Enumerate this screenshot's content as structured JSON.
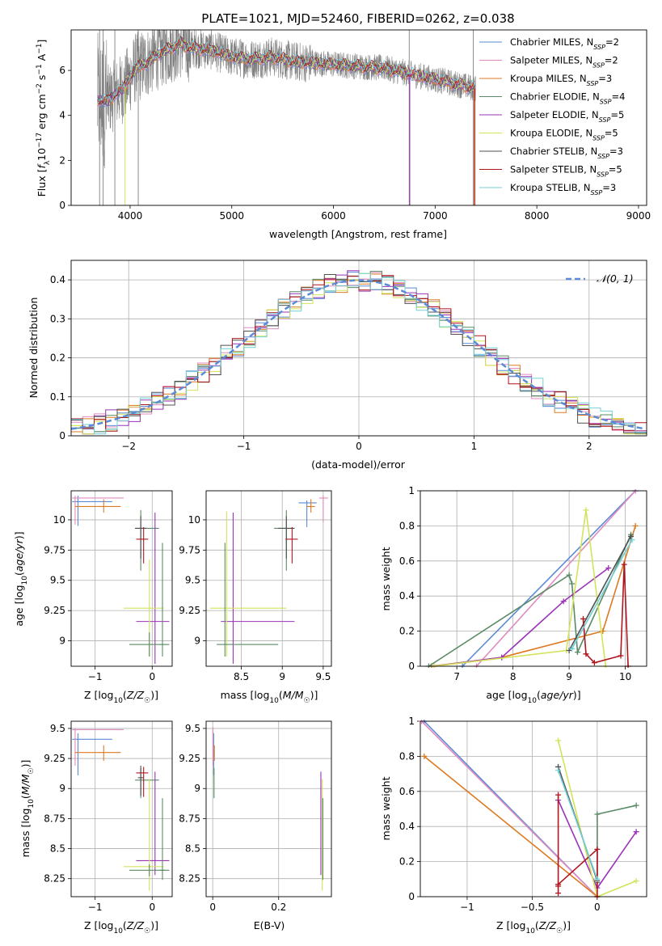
{
  "figure": {
    "title": "PLATE=1021, MJD=52460, FIBERID=0262, z=0.038"
  },
  "colors": {
    "models": [
      "#5b8ad6",
      "#e08bbf",
      "#dd7a20",
      "#5a8a66",
      "#9a33b8",
      "#d3e35a",
      "#505050",
      "#b0141d",
      "#72d0d6"
    ],
    "observed": "#808080",
    "normal_curve": "#5b8ad6"
  },
  "chart_data": [
    {
      "id": "spectrum",
      "type": "line",
      "xlabel": "wavelength [Angstrom, rest frame]",
      "ylabel": "Flux [f_λ 10^-17 erg cm^-2 s^-1 A^-1]",
      "xlim": [
        3420,
        9080
      ],
      "ylim": [
        0,
        7.8
      ],
      "xticks": [
        4000,
        5000,
        6000,
        7000,
        8000,
        9000
      ],
      "yticks": [
        0,
        2,
        4,
        6
      ],
      "grid": false,
      "legend_position": "top-right",
      "series": [
        {
          "name": "Chabrier MILES, N_SSP=2",
          "legend_main": "Chabrier MILES, N",
          "legend_sub": "SSP",
          "legend_tail": "=2"
        },
        {
          "name": "Salpeter MILES, N_SSP=2",
          "legend_main": "Salpeter MILES, N",
          "legend_sub": "SSP",
          "legend_tail": "=2"
        },
        {
          "name": "Kroupa MILES, N_SSP=3",
          "legend_main": "Kroupa MILES, N",
          "legend_sub": "SSP",
          "legend_tail": "=3"
        },
        {
          "name": "Chabrier ELODIE, N_SSP=4",
          "legend_main": "Chabrier ELODIE, N",
          "legend_sub": "SSP",
          "legend_tail": "=4"
        },
        {
          "name": "Salpeter ELODIE, N_SSP=5",
          "legend_main": "Salpeter ELODIE, N",
          "legend_sub": "SSP",
          "legend_tail": "=5"
        },
        {
          "name": "Kroupa ELODIE, N_SSP=5",
          "legend_main": "Kroupa ELODIE, N",
          "legend_sub": "SSP",
          "legend_tail": "=5"
        },
        {
          "name": "Chabrier STELIB, N_SSP=3",
          "legend_main": "Chabrier STELIB, N",
          "legend_sub": "SSP",
          "legend_tail": "=3"
        },
        {
          "name": "Salpeter STELIB, N_SSP=5",
          "legend_main": "Salpeter STELIB, N",
          "legend_sub": "SSP",
          "legend_tail": "=5"
        },
        {
          "name": "Kroupa STELIB, N_SSP=3",
          "legend_main": "Kroupa STELIB, N",
          "legend_sub": "SSP",
          "legend_tail": "=3"
        }
      ],
      "model_continuum": [
        [
          3680,
          4.7
        ],
        [
          3760,
          4.6
        ],
        [
          3850,
          4.9
        ],
        [
          3950,
          5.3
        ],
        [
          4050,
          6.1
        ],
        [
          4150,
          6.3
        ],
        [
          4300,
          6.8
        ],
        [
          4400,
          7.0
        ],
        [
          4500,
          7.2
        ],
        [
          4600,
          7.0
        ],
        [
          4800,
          6.9
        ],
        [
          5000,
          6.6
        ],
        [
          5200,
          6.5
        ],
        [
          5400,
          6.6
        ],
        [
          5600,
          6.4
        ],
        [
          5900,
          6.3
        ],
        [
          6200,
          6.2
        ],
        [
          6500,
          6.1
        ],
        [
          6800,
          5.8
        ],
        [
          7000,
          5.6
        ],
        [
          7200,
          5.4
        ],
        [
          7390,
          5.2
        ]
      ],
      "observed_range": [
        3680,
        7400
      ],
      "model_ranges": [
        [
          3680,
          7390
        ],
        [
          3680,
          7390
        ],
        [
          3680,
          7390
        ],
        [
          3680,
          6750
        ],
        [
          3680,
          7390
        ],
        [
          3950,
          7390
        ],
        [
          3680,
          7390
        ],
        [
          3680,
          7390
        ],
        [
          3680,
          7390
        ]
      ],
      "drops": [
        {
          "x": 3950,
          "series": 5
        },
        {
          "x": 6750,
          "series": 3
        },
        {
          "x": 6750,
          "series": 4
        },
        {
          "x": 7385,
          "series": 2
        },
        {
          "x": 7390,
          "series": 7
        }
      ],
      "observed_spikes_x": [
        3700,
        3735,
        3850,
        4080,
        6745,
        7375
      ]
    },
    {
      "id": "residuals",
      "type": "histogram",
      "xlabel": "(data-model)/error",
      "ylabel": "Normed distribution",
      "xlim": [
        -2.5,
        2.5
      ],
      "ylim": [
        0,
        0.45
      ],
      "xticks": [
        -2,
        -1,
        0,
        1,
        2
      ],
      "yticks": [
        0.0,
        0.1,
        0.2,
        0.3,
        0.4
      ],
      "grid": true,
      "legend_position": "top-right",
      "normal_curve_label": "𝒩(0, 1)",
      "bin_width": 0.1
    },
    {
      "id": "age_vs_Z",
      "type": "errorbar",
      "xlabel": "Z [log10(Z/Z☉)]",
      "ylabel": "age [log10(age/yr)]",
      "xlim": [
        -1.42,
        0.35
      ],
      "ylim": [
        8.79,
        10.24
      ],
      "xticks": [
        -1,
        0
      ],
      "yticks": [
        9.0,
        9.25,
        9.5,
        9.75,
        10.0
      ],
      "grid": true,
      "points": [
        {
          "x": -1.3,
          "y": 10.15,
          "xerr": [
            0.1,
            0.6
          ],
          "yerr": [
            0.2,
            0.05
          ],
          "series": 0
        },
        {
          "x": -1.35,
          "y": 10.18,
          "xerr": [
            0.05,
            0.85
          ],
          "yerr": [
            0.22,
            0.02
          ],
          "series": 1
        },
        {
          "x": -0.85,
          "y": 10.11,
          "xerr": [
            0.5,
            0.3
          ],
          "yerr": [
            0.05,
            0.06
          ],
          "series": 2
        },
        {
          "x": -0.2,
          "y": 9.93,
          "xerr": [
            0.1,
            0.32
          ],
          "yerr": [
            0.35,
            0.15
          ],
          "series": 3
        },
        {
          "x": 0.05,
          "y": 9.16,
          "xerr": [
            0.33,
            0.25
          ],
          "yerr": [
            0.35,
            0.9
          ],
          "series": 4
        },
        {
          "x": -0.05,
          "y": 9.27,
          "xerr": [
            0.45,
            0.25
          ],
          "yerr": [
            0.4,
            0.4
          ],
          "series": 5
        },
        {
          "x": -0.2,
          "y": 9.93,
          "xerr": [
            0.1,
            0.1
          ],
          "yerr": [
            0.25,
            0.1
          ],
          "series": 6
        },
        {
          "x": -0.15,
          "y": 9.84,
          "xerr": [
            0.13,
            0.08
          ],
          "yerr": [
            0.2,
            0.1
          ],
          "series": 7
        },
        {
          "x": -0.05,
          "y": 8.97,
          "xerr": [
            0.35,
            0.35
          ],
          "yerr": [
            0.1,
            0.1
          ],
          "series": 3
        },
        {
          "x": 0.18,
          "y": 8.97,
          "xerr": [
            0.05,
            0.05
          ],
          "yerr": [
            0.1,
            0.84
          ],
          "series": 3
        }
      ]
    },
    {
      "id": "age_vs_mass",
      "type": "errorbar",
      "xlabel": "mass [log10(M/M☉)]",
      "ylabel": "",
      "xlim": [
        8.07,
        9.6
      ],
      "ylim": [
        8.79,
        10.24
      ],
      "xticks": [
        8.5,
        9.0,
        9.5
      ],
      "yticks": [
        9.0,
        9.25,
        9.5,
        9.75,
        10.0
      ],
      "grid": true,
      "points": [
        {
          "x": 9.3,
          "y": 10.14,
          "xerr": [
            0.1,
            0.12
          ],
          "yerr": [
            0.2,
            0.02
          ],
          "series": 0
        },
        {
          "x": 9.5,
          "y": 10.18,
          "xerr": [
            0.05,
            0.06
          ],
          "yerr": [
            0.2,
            0.02
          ],
          "series": 1
        },
        {
          "x": 9.35,
          "y": 10.11,
          "xerr": [
            0.05,
            0.05
          ],
          "yerr": [
            0.05,
            0.06
          ],
          "series": 2
        },
        {
          "x": 9.05,
          "y": 9.93,
          "xerr": [
            0.15,
            0.1
          ],
          "yerr": [
            0.35,
            0.15
          ],
          "series": 3
        },
        {
          "x": 8.4,
          "y": 9.16,
          "xerr": [
            0.15,
            0.75
          ],
          "yerr": [
            0.35,
            0.9
          ],
          "series": 4
        },
        {
          "x": 8.32,
          "y": 9.27,
          "xerr": [
            0.2,
            0.73
          ],
          "yerr": [
            0.4,
            0.8
          ],
          "series": 5
        },
        {
          "x": 9.05,
          "y": 9.93,
          "xerr": [
            0.1,
            0.1
          ],
          "yerr": [
            0.25,
            0.1
          ],
          "series": 6
        },
        {
          "x": 9.12,
          "y": 9.84,
          "xerr": [
            0.08,
            0.07
          ],
          "yerr": [
            0.2,
            0.1
          ],
          "series": 7
        },
        {
          "x": 8.3,
          "y": 8.97,
          "xerr": [
            0.1,
            0.65
          ],
          "yerr": [
            0.1,
            0.84
          ],
          "series": 3
        }
      ]
    },
    {
      "id": "mass_weight_vs_age",
      "type": "line",
      "xlabel": "age  [log10(age/yr)]",
      "ylabel": "mass weight",
      "xlim": [
        6.35,
        10.38
      ],
      "ylim": [
        0,
        1.0
      ],
      "xticks": [
        7,
        8,
        9,
        10
      ],
      "yticks": [
        0.0,
        0.2,
        0.4,
        0.6,
        0.8,
        1.0
      ],
      "grid": true,
      "series": [
        {
          "series": 0,
          "x": [
            7.1,
            10.18
          ],
          "y": [
            0.0,
            1.0
          ]
        },
        {
          "series": 1,
          "x": [
            7.35,
            10.18
          ],
          "y": [
            0.0,
            1.0
          ]
        },
        {
          "series": 2,
          "x": [
            6.55,
            7.8,
            9.6,
            10.18
          ],
          "y": [
            0.0,
            0.05,
            0.2,
            0.8
          ]
        },
        {
          "series": 3,
          "x": [
            6.5,
            9.0,
            9.05,
            9.15,
            10.1
          ],
          "y": [
            0.0,
            0.52,
            0.47,
            0.08,
            0.75
          ]
        },
        {
          "series": 4,
          "x": [
            6.6,
            7.8,
            8.9,
            9.7
          ],
          "y": [
            0.0,
            0.05,
            0.37,
            0.56
          ]
        },
        {
          "series": 5,
          "x": [
            6.6,
            8.95,
            9.3,
            9.65
          ],
          "y": [
            0.0,
            0.09,
            0.89,
            0.0
          ]
        },
        {
          "series": 6,
          "x": [
            9.0,
            10.1
          ],
          "y": [
            0.09,
            0.74
          ]
        },
        {
          "series": 7,
          "x": [
            9.25,
            9.3,
            9.45,
            9.92,
            9.98,
            10.05
          ],
          "y": [
            0.27,
            0.07,
            0.02,
            0.06,
            0.58,
            0.0
          ]
        },
        {
          "series": 8,
          "x": [
            9.05,
            10.12
          ],
          "y": [
            0.1,
            0.72
          ]
        }
      ]
    },
    {
      "id": "mass_vs_Z",
      "type": "errorbar",
      "xlabel": "Z [log10(Z/Z☉)]",
      "ylabel": "mass [log10(M/M☉)]",
      "xlim": [
        -1.42,
        0.35
      ],
      "ylim": [
        8.1,
        9.56
      ],
      "xticks": [
        -1,
        0
      ],
      "yticks": [
        8.25,
        8.5,
        8.75,
        9.0,
        9.25,
        9.5
      ],
      "grid": true,
      "points": [
        {
          "x": -1.3,
          "y": 9.41,
          "xerr": [
            0.1,
            0.6
          ],
          "yerr": [
            0.3,
            0.05
          ],
          "series": 0
        },
        {
          "x": -1.35,
          "y": 9.49,
          "xerr": [
            0.05,
            0.85
          ],
          "yerr": [
            0.3,
            0.01
          ],
          "series": 1
        },
        {
          "x": -0.85,
          "y": 9.3,
          "xerr": [
            0.5,
            0.3
          ],
          "yerr": [
            0.07,
            0.06
          ],
          "series": 2
        },
        {
          "x": -0.2,
          "y": 9.07,
          "xerr": [
            0.1,
            0.32
          ],
          "yerr": [
            0.15,
            0.1
          ],
          "series": 3
        },
        {
          "x": 0.05,
          "y": 8.4,
          "xerr": [
            0.33,
            0.25
          ],
          "yerr": [
            0.12,
            0.74
          ],
          "series": 4
        },
        {
          "x": -0.05,
          "y": 8.35,
          "xerr": [
            0.45,
            0.25
          ],
          "yerr": [
            0.2,
            0.73
          ],
          "series": 5
        },
        {
          "x": -0.2,
          "y": 9.09,
          "xerr": [
            0.05,
            0.05
          ],
          "yerr": [
            0.15,
            0.1
          ],
          "series": 6
        },
        {
          "x": -0.15,
          "y": 9.13,
          "xerr": [
            0.13,
            0.08
          ],
          "yerr": [
            0.2,
            0.05
          ],
          "series": 7
        },
        {
          "x": -0.05,
          "y": 8.32,
          "xerr": [
            0.35,
            0.35
          ],
          "yerr": [
            0.05,
            0.05
          ],
          "series": 3
        },
        {
          "x": 0.18,
          "y": 8.32,
          "xerr": [
            0.05,
            0.05
          ],
          "yerr": [
            0.08,
            0.6
          ],
          "series": 3
        }
      ]
    },
    {
      "id": "mass_vs_EBV",
      "type": "errorbar",
      "xlabel": "E(B-V)",
      "ylabel": "",
      "xlim": [
        -0.02,
        0.36
      ],
      "ylim": [
        8.1,
        9.56
      ],
      "xticks": [
        0.0,
        0.2
      ],
      "yticks": [
        8.25,
        8.5,
        8.75,
        9.0,
        9.25,
        9.5
      ],
      "grid": true,
      "points": [
        {
          "x": 0.003,
          "y": 9.41,
          "xerr": [
            0,
            0
          ],
          "yerr": [
            0.3,
            0.05
          ],
          "series": 0
        },
        {
          "x": 0.001,
          "y": 9.49,
          "xerr": [
            0,
            0
          ],
          "yerr": [
            0.3,
            0.02
          ],
          "series": 1
        },
        {
          "x": 0.005,
          "y": 9.3,
          "xerr": [
            0,
            0
          ],
          "yerr": [
            0.07,
            0.06
          ],
          "series": 2
        },
        {
          "x": 0.004,
          "y": 9.07,
          "xerr": [
            0,
            0
          ],
          "yerr": [
            0.15,
            0.1
          ],
          "series": 3
        },
        {
          "x": 0.328,
          "y": 8.4,
          "xerr": [
            0,
            0
          ],
          "yerr": [
            0.12,
            0.74
          ],
          "series": 4
        },
        {
          "x": 0.332,
          "y": 8.35,
          "xerr": [
            0,
            0
          ],
          "yerr": [
            0.2,
            0.73
          ],
          "series": 5
        },
        {
          "x": 0.334,
          "y": 8.32,
          "xerr": [
            0,
            0
          ],
          "yerr": [
            0.08,
            0.6
          ],
          "series": 3
        }
      ]
    },
    {
      "id": "mass_weight_vs_Z",
      "type": "line",
      "xlabel": "Z [log10(Z/Z☉)]",
      "ylabel": "mass weight",
      "xlim": [
        -1.36,
        0.38
      ],
      "ylim": [
        0,
        1.0
      ],
      "xticks": [
        -1.0,
        -0.5,
        0.0
      ],
      "yticks": [
        0.0,
        0.2,
        0.4,
        0.6,
        0.8,
        1.0
      ],
      "grid": true,
      "series": [
        {
          "series": 0,
          "x": [
            -1.33,
            0.0
          ],
          "y": [
            1.0,
            0.0
          ]
        },
        {
          "series": 1,
          "x": [
            -1.35,
            0.0
          ],
          "y": [
            1.0,
            0.0
          ]
        },
        {
          "series": 2,
          "x": [
            -1.33,
            0.0
          ],
          "y": [
            0.8,
            0.0
          ]
        },
        {
          "series": 3,
          "x": [
            0.3,
            0.0,
            0.0
          ],
          "y": [
            0.52,
            0.47,
            0.08
          ]
        },
        {
          "series": 4,
          "x": [
            -0.3,
            0.0,
            0.3
          ],
          "y": [
            0.55,
            0.05,
            0.37
          ]
        },
        {
          "series": 5,
          "x": [
            -0.3,
            0.0,
            0.3
          ],
          "y": [
            0.89,
            0.0,
            0.09
          ]
        },
        {
          "series": 6,
          "x": [
            -0.3,
            0.0
          ],
          "y": [
            0.74,
            0.09
          ]
        },
        {
          "series": 7,
          "x": [
            -0.3,
            -0.3,
            -0.3,
            -0.3,
            0.0,
            0.0
          ],
          "y": [
            0.58,
            0.06,
            0.02,
            0.07,
            0.27,
            0.0
          ]
        },
        {
          "series": 8,
          "x": [
            -0.3,
            0.0
          ],
          "y": [
            0.72,
            0.1
          ]
        }
      ]
    }
  ]
}
